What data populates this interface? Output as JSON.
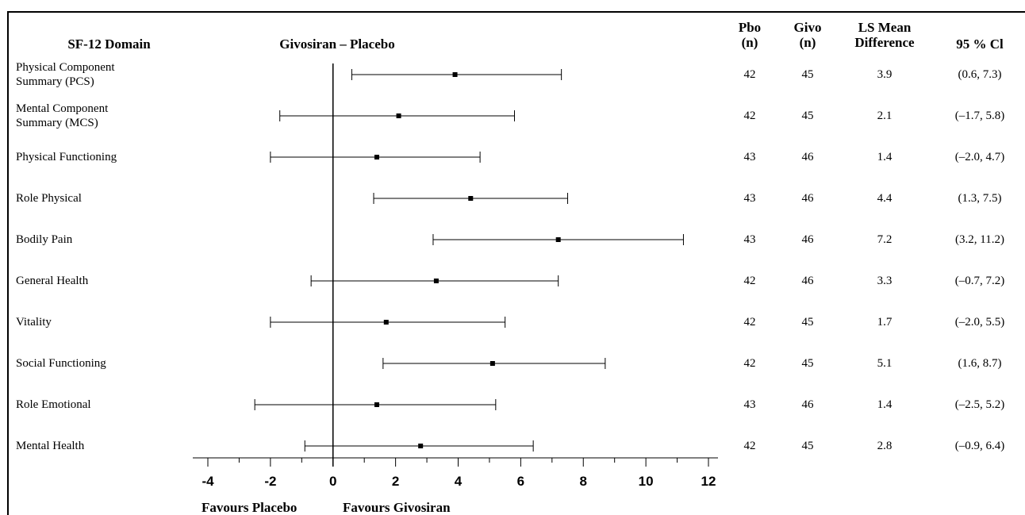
{
  "headers": {
    "domain": "SF-12 Domain",
    "comparison": "Givosiran – Placebo",
    "pbo_line1": "Pbo",
    "pbo_line2": "(n)",
    "givo_line1": "Givo",
    "givo_line2": "(n)",
    "ls_line1": "LS Mean",
    "ls_line2": "Difference",
    "ci": "95 % Cl"
  },
  "footer": {
    "favours_placebo": "Favours Placebo",
    "favours_givosiran": "Favours Givosiran"
  },
  "rows": [
    {
      "label_lines": [
        "Physical Component",
        "Summary (PCS)"
      ],
      "pbo_n": "42",
      "givo_n": "45",
      "ls_mean_text": "3.9",
      "ci_text": "(0.6, 7.3)"
    },
    {
      "label_lines": [
        "Mental Component",
        "Summary (MCS)"
      ],
      "pbo_n": "42",
      "givo_n": "45",
      "ls_mean_text": "2.1",
      "ci_text": "(–1.7, 5.8)"
    },
    {
      "label_lines": [
        "Physical Functioning"
      ],
      "pbo_n": "43",
      "givo_n": "46",
      "ls_mean_text": "1.4",
      "ci_text": "(–2.0, 4.7)"
    },
    {
      "label_lines": [
        "Role Physical"
      ],
      "pbo_n": "43",
      "givo_n": "46",
      "ls_mean_text": "4.4",
      "ci_text": "(1.3, 7.5)"
    },
    {
      "label_lines": [
        "Bodily Pain"
      ],
      "pbo_n": "43",
      "givo_n": "46",
      "ls_mean_text": "7.2",
      "ci_text": "(3.2, 11.2)"
    },
    {
      "label_lines": [
        "General Health"
      ],
      "pbo_n": "42",
      "givo_n": "46",
      "ls_mean_text": "3.3",
      "ci_text": "(–0.7, 7.2)"
    },
    {
      "label_lines": [
        "Vitality"
      ],
      "pbo_n": "42",
      "givo_n": "45",
      "ls_mean_text": "1.7",
      "ci_text": "(–2.0, 5.5)"
    },
    {
      "label_lines": [
        "Social Functioning"
      ],
      "pbo_n": "42",
      "givo_n": "45",
      "ls_mean_text": "5.1",
      "ci_text": "(1.6, 8.7)"
    },
    {
      "label_lines": [
        "Role Emotional"
      ],
      "pbo_n": "43",
      "givo_n": "46",
      "ls_mean_text": "1.4",
      "ci_text": "(–2.5, 5.2)"
    },
    {
      "label_lines": [
        "Mental Health"
      ],
      "pbo_n": "42",
      "givo_n": "45",
      "ls_mean_text": "2.8",
      "ci_text": "(–0.9, 6.4)"
    }
  ],
  "chart_data": {
    "type": "forest",
    "title": "Givosiran – Placebo",
    "xlabel_left": "Favours Placebo",
    "xlabel_right": "Favours Givosiran",
    "xlim": [
      -4,
      12
    ],
    "xticks": [
      -4,
      -2,
      0,
      2,
      4,
      6,
      8,
      10,
      12
    ],
    "reference_line": 0,
    "categories": [
      "Physical Component Summary (PCS)",
      "Mental Component Summary (MCS)",
      "Physical Functioning",
      "Role Physical",
      "Bodily Pain",
      "General Health",
      "Vitality",
      "Social Functioning",
      "Role Emotional",
      "Mental Health"
    ],
    "estimates": [
      3.9,
      2.1,
      1.4,
      4.4,
      7.2,
      3.3,
      1.7,
      5.1,
      1.4,
      2.8
    ],
    "ci_low": [
      0.6,
      -1.7,
      -2.0,
      1.3,
      3.2,
      -0.7,
      -2.0,
      1.6,
      -2.5,
      -0.9
    ],
    "ci_high": [
      7.3,
      5.8,
      4.7,
      7.5,
      11.2,
      7.2,
      5.5,
      8.7,
      5.2,
      6.4
    ]
  }
}
